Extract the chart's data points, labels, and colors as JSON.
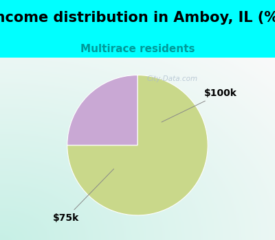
{
  "title": "Income distribution in Amboy, IL (%)",
  "subtitle": "Multirace residents",
  "subtitle_color": "#009999",
  "title_bg_color": "#00FFFF",
  "chart_bg_top_left": "#C8EEE8",
  "chart_bg_center": "#EEF8F0",
  "slices": [
    75.0,
    25.0
  ],
  "slice_colors": [
    "#C9D88A",
    "#C9A8D4"
  ],
  "start_angle": 90,
  "title_fontsize": 15,
  "subtitle_fontsize": 11,
  "label_fontsize": 10,
  "watermark": "City-Data.com",
  "label_75k": "$75k",
  "label_100k": "$100k"
}
